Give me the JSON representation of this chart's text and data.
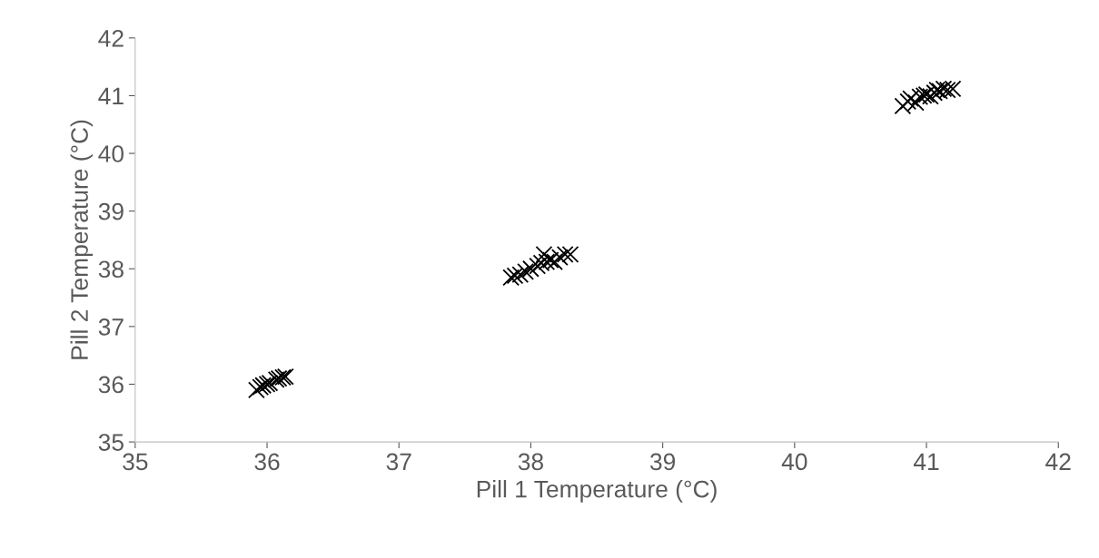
{
  "chart_data": {
    "type": "scatter",
    "xlabel": "Pill 1 Temperature (°C)",
    "ylabel": "Pill 2 Temperature (°C)",
    "x": [
      35.92,
      35.95,
      35.97,
      36.0,
      36.02,
      36.07,
      36.09,
      36.12,
      36.14,
      37.85,
      37.88,
      37.92,
      37.96,
      38.0,
      38.05,
      38.08,
      38.1,
      38.12,
      38.15,
      38.18,
      38.22,
      38.26,
      38.3,
      40.82,
      40.86,
      40.88,
      40.92,
      40.95,
      40.98,
      41.0,
      41.03,
      41.06,
      41.08,
      41.1,
      41.13,
      41.16,
      41.2
    ],
    "values": [
      35.9,
      35.95,
      35.98,
      36.0,
      36.02,
      36.08,
      36.1,
      36.12,
      36.13,
      37.85,
      37.88,
      37.9,
      37.95,
      38.0,
      38.05,
      38.1,
      38.25,
      38.12,
      38.15,
      38.12,
      38.2,
      38.25,
      38.25,
      40.82,
      40.9,
      40.95,
      40.88,
      40.98,
      41.0,
      41.02,
      40.99,
      41.05,
      41.1,
      41.08,
      41.12,
      41.1,
      41.12
    ],
    "color": "#000000",
    "marker": "cross",
    "grid": false,
    "xlim": [
      35,
      42
    ],
    "xticks": [
      35,
      36,
      37,
      38,
      39,
      40,
      41,
      42
    ],
    "ylim": [
      35,
      42
    ],
    "yticks": [
      35,
      36,
      37,
      38,
      39,
      40,
      41,
      42
    ]
  }
}
